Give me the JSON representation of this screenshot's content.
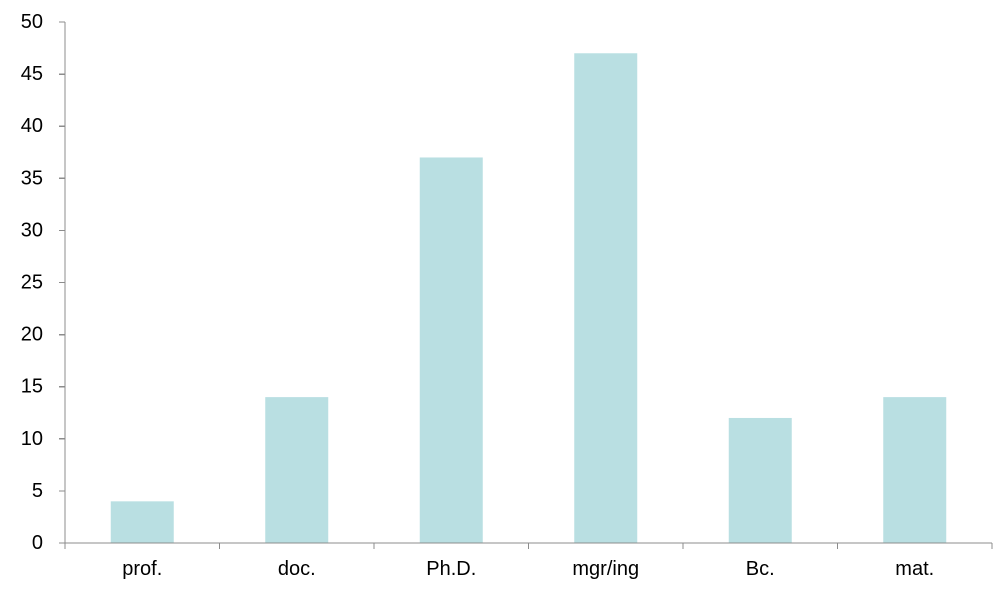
{
  "chart_data": {
    "type": "bar",
    "title": "",
    "xlabel": "",
    "ylabel": "",
    "categories": [
      "prof.",
      "doc.",
      "Ph.D.",
      "mgr/ing",
      "Bc.",
      "mat."
    ],
    "values": [
      4,
      14,
      37,
      47,
      12,
      14
    ],
    "ylim": [
      0,
      50
    ],
    "yticks": [
      "0",
      "5",
      "10",
      "15",
      "20",
      "25",
      "30",
      "35",
      "40",
      "45",
      "50"
    ],
    "grid": false,
    "legend": "none",
    "bar_color": "#b9dfe2",
    "axis_color": "#8c8c8c"
  }
}
